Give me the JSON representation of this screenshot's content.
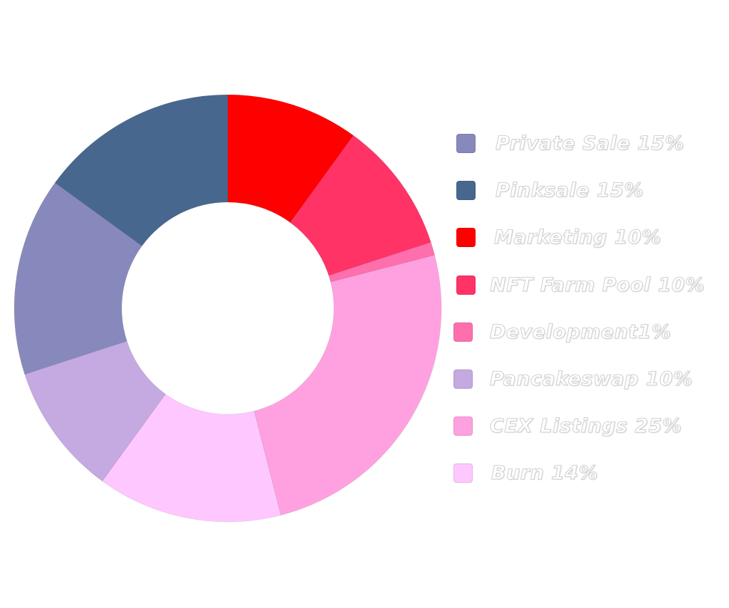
{
  "chart_data": {
    "type": "pie",
    "donut": true,
    "slices": [
      {
        "label": "Marketing 10%",
        "value": 10,
        "color": "#ff0000"
      },
      {
        "label": "NFT Farm Pool 10%",
        "value": 10,
        "color": "#ff3366"
      },
      {
        "label": "Development1%",
        "value": 1,
        "color": "#ff6fae"
      },
      {
        "label": "CEX Listings 25%",
        "value": 25,
        "color": "#ffa1e0"
      },
      {
        "label": "Burn 14%",
        "value": 14,
        "color": "#ffc7ff"
      },
      {
        "label": "Pancakeswap 10%",
        "value": 10,
        "color": "#c4aae0"
      },
      {
        "label": "Private Sale 15%",
        "value": 15,
        "color": "#8789bd"
      },
      {
        "label": "Pinksale 15%",
        "value": 15,
        "color": "#47678f"
      }
    ],
    "legend": [
      {
        "label": "Private Sale 15%",
        "color": "#8789bd"
      },
      {
        "label": "Pinksale 15%",
        "color": "#47678f"
      },
      {
        "label": "Marketing 10%",
        "color": "#ff0000"
      },
      {
        "label": "NFT Farm Pool 10%",
        "color": "#ff3366"
      },
      {
        "label": "Development1%",
        "color": "#ff6fae"
      },
      {
        "label": "Pancakeswap 10%",
        "color": "#c4aae0"
      },
      {
        "label": "CEX Listings 25%",
        "color": "#ffa1e0"
      },
      {
        "label": "Burn 14%",
        "color": "#ffc7ff"
      }
    ],
    "legend_position": "right"
  }
}
